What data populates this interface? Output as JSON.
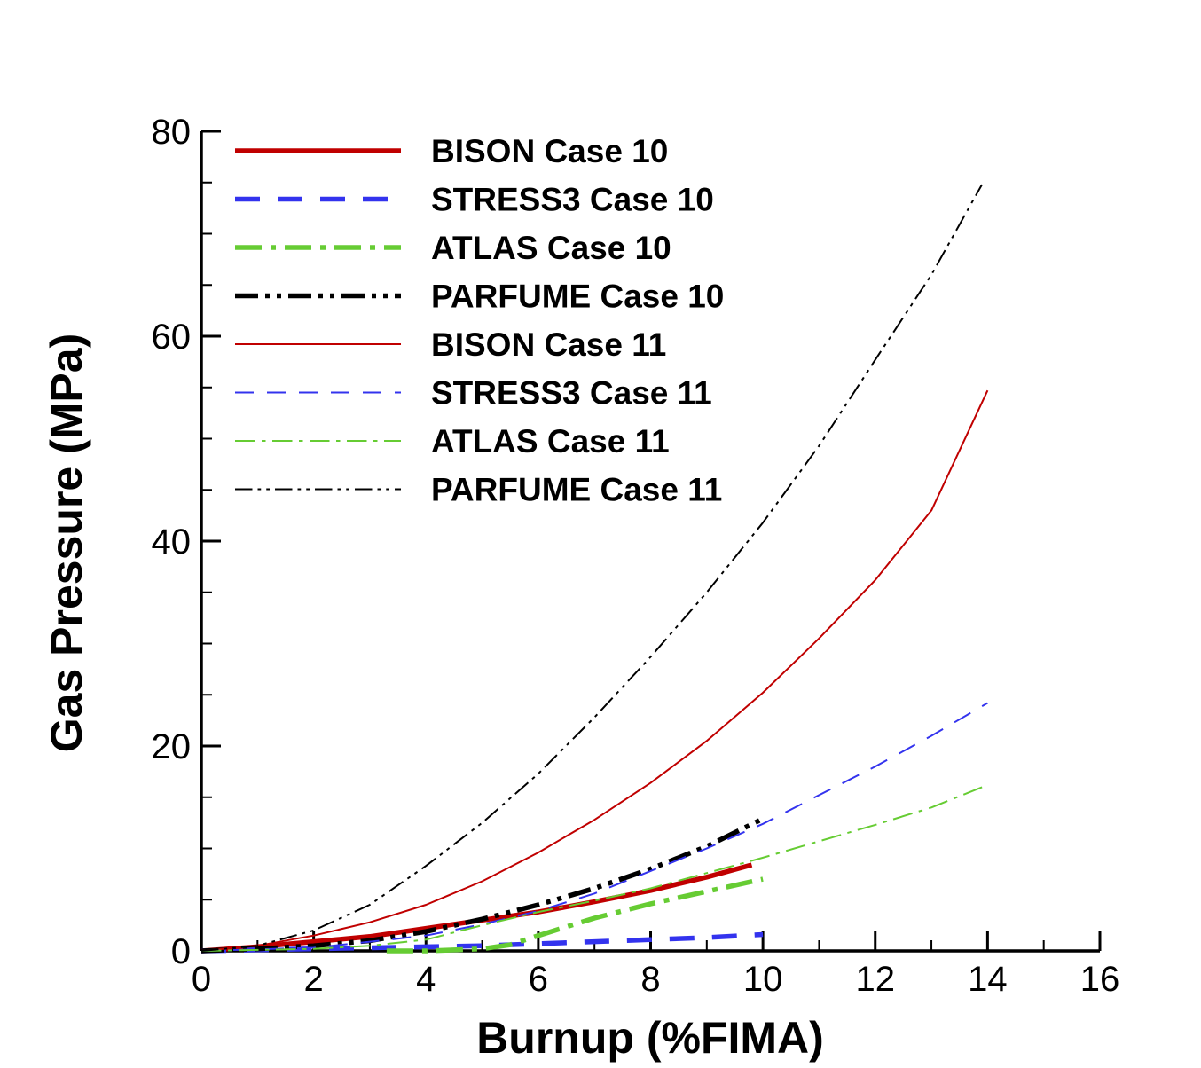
{
  "chart_data": {
    "type": "line",
    "xlabel": "Burnup (%FIMA)",
    "ylabel": "Gas Pressure (MPa)",
    "xlim": [
      0,
      16
    ],
    "ylim": [
      0,
      80
    ],
    "xticks": [
      "0",
      "2",
      "4",
      "6",
      "8",
      "10",
      "12",
      "14",
      "16"
    ],
    "yticks": [
      "0",
      "20",
      "40",
      "60",
      "80"
    ],
    "grid": false,
    "legend_position": "top-left",
    "series": [
      {
        "name": "BISON Case 10",
        "color": "#c00000",
        "style": "solid",
        "weight": "thick",
        "x": [
          0,
          1,
          2,
          3,
          4,
          5,
          6,
          7,
          8,
          9,
          9.8
        ],
        "y": [
          0,
          0.4,
          0.9,
          1.4,
          2.2,
          3.0,
          3.8,
          4.8,
          5.9,
          7.2,
          8.4
        ]
      },
      {
        "name": "STRESS3 Case 10",
        "color": "#3333ee",
        "style": "dashed",
        "weight": "thick",
        "x": [
          0,
          1,
          2,
          3,
          4,
          5,
          6,
          7,
          8,
          9,
          10
        ],
        "y": [
          0,
          0.1,
          0.2,
          0.3,
          0.4,
          0.5,
          0.7,
          0.9,
          1.1,
          1.3,
          1.6
        ]
      },
      {
        "name": "ATLAS Case 10",
        "color": "#66cc33",
        "style": "dashdot",
        "weight": "thick",
        "x": [
          3.3,
          4,
          5,
          5.5,
          6,
          7,
          8,
          9,
          10
        ],
        "y": [
          0.0,
          0.0,
          0.2,
          0.6,
          1.5,
          3.2,
          4.6,
          5.8,
          7.0
        ]
      },
      {
        "name": "PARFUME Case 10",
        "color": "#000000",
        "style": "dashdotdot",
        "weight": "thick",
        "x": [
          0,
          1,
          2,
          3,
          4,
          5,
          6,
          7,
          8,
          9,
          10
        ],
        "y": [
          0,
          0.2,
          0.5,
          1.0,
          1.9,
          3.1,
          4.5,
          6.1,
          8.0,
          10.2,
          12.9
        ]
      },
      {
        "name": "BISON Case 11",
        "color": "#c00000",
        "style": "solid",
        "weight": "thin",
        "x": [
          0,
          1,
          2,
          3,
          4,
          5,
          6,
          7,
          8,
          9,
          10,
          11,
          12,
          13,
          14
        ],
        "y": [
          0,
          0.5,
          1.5,
          2.8,
          4.5,
          6.8,
          9.6,
          12.8,
          16.4,
          20.5,
          25.2,
          30.5,
          36.2,
          43.0,
          54.7
        ]
      },
      {
        "name": "STRESS3 Case 11",
        "color": "#3333ee",
        "style": "dashed",
        "weight": "thin",
        "x": [
          0,
          2,
          4,
          5,
          6,
          7,
          8,
          9,
          10,
          11,
          12,
          13,
          14
        ],
        "y": [
          0,
          0.3,
          1.5,
          2.6,
          3.9,
          5.6,
          7.8,
          10.0,
          12.4,
          15.2,
          18.0,
          21.0,
          24.2
        ]
      },
      {
        "name": "ATLAS Case 11",
        "color": "#66cc33",
        "style": "dashdot",
        "weight": "thin",
        "x": [
          0,
          2,
          3,
          4,
          5,
          6,
          7,
          8,
          9,
          10,
          11,
          12,
          13,
          14
        ],
        "y": [
          0,
          0.2,
          0.5,
          1.1,
          2.5,
          3.8,
          4.9,
          6.1,
          7.6,
          9.1,
          10.7,
          12.3,
          14.0,
          16.2
        ]
      },
      {
        "name": "PARFUME Case 11",
        "color": "#000000",
        "style": "dashdotdot",
        "weight": "thin",
        "x": [
          0,
          1,
          2,
          3,
          4,
          5,
          6,
          7,
          8,
          9,
          10,
          11,
          12,
          13,
          13.9
        ],
        "y": [
          0,
          0.5,
          2.0,
          4.5,
          8.3,
          12.5,
          17.3,
          22.8,
          28.7,
          35.0,
          41.8,
          49.3,
          57.7,
          66.0,
          74.8
        ]
      }
    ]
  }
}
